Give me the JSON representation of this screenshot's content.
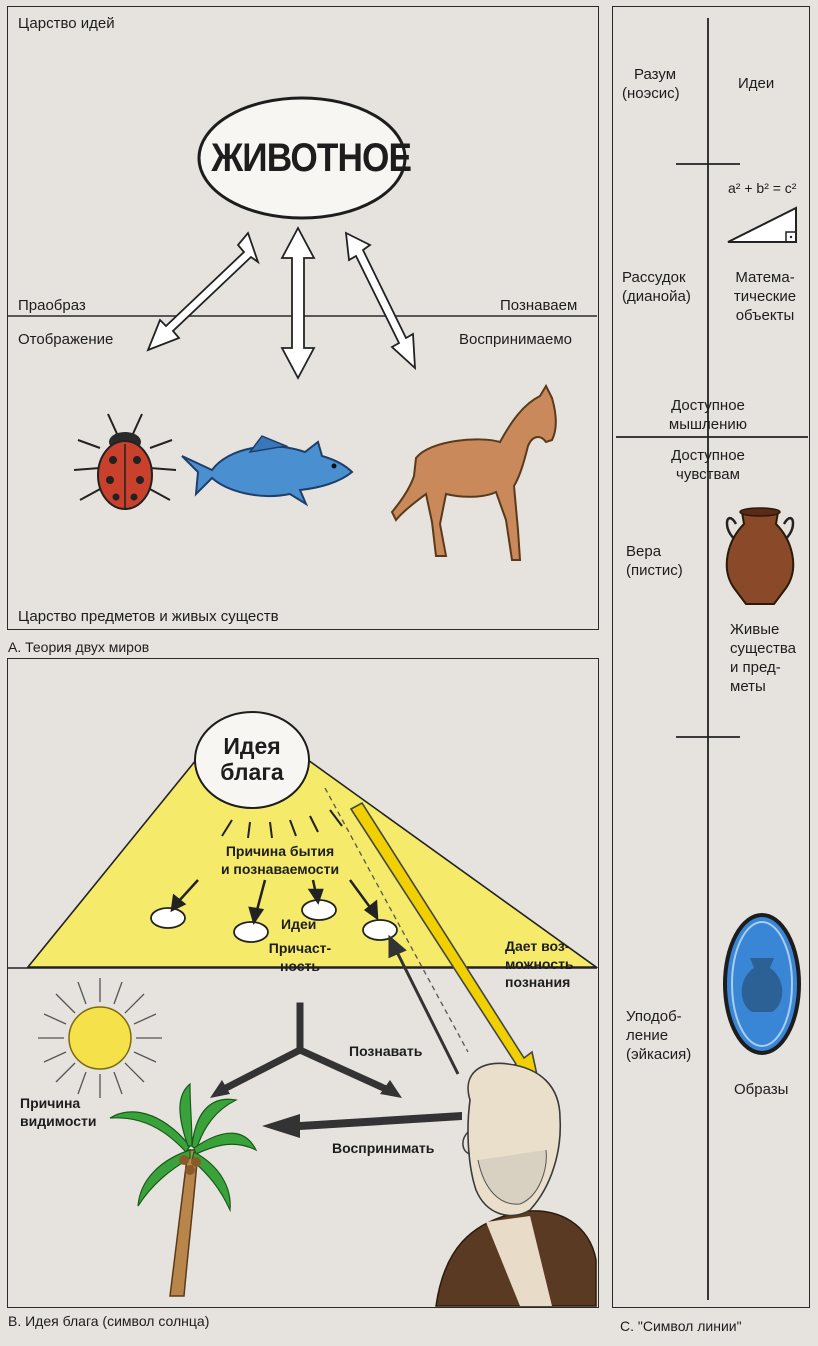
{
  "panel_a": {
    "realm_ideas": "Царство идей",
    "animal": "ЖИВОТНОЕ",
    "prototype": "Праобраз",
    "reflection": "Отображение",
    "cognize": "Познаваем",
    "perceived": "Воспринимаемо",
    "realm_objects": "Царство предметов и живых существ",
    "caption": "A.  Теория двух миров"
  },
  "panel_b": {
    "idea_good_1": "Идея",
    "idea_good_2": "блага",
    "cause_being_1": "Причина бытия",
    "cause_being_2": "и познаваемости",
    "ideas": "Идеи",
    "participation_1": "Причаст-",
    "participation_2": "ность",
    "gives_1": "Дает воз-",
    "gives_2": "можность",
    "gives_3": "познания",
    "to_cognize": "Познавать",
    "cause_visibility_1": "Причина",
    "cause_visibility_2": "видимости",
    "to_perceive": "Воспринимать",
    "caption": "B.  Идея блага (символ солнца)"
  },
  "panel_c": {
    "reason_1": "Разум",
    "reason_2": "(ноэсис)",
    "ideas": "Идеи",
    "formula": "a² + b² = c²",
    "understanding_1": "Рассудок",
    "understanding_2": "(дианойа)",
    "math_1": "Матема-",
    "math_2": "тические",
    "math_3": "объекты",
    "thinkable_1": "Доступное",
    "thinkable_2": "мышлению",
    "sensible_1": "Доступное",
    "sensible_2": "чувствам",
    "faith_1": "Вера",
    "faith_2": "(пистис)",
    "living_1": "Живые",
    "living_2": "существа",
    "living_3": "и пред-",
    "living_4": "меты",
    "likeness_1": "Уподоб-",
    "likeness_2": "ление",
    "likeness_3": "(эйкасия)",
    "images": "Образы",
    "caption": "C. \"Символ линии\""
  },
  "colors": {
    "beam": "#f5ea6a",
    "fish": "#4a8fd0",
    "horse": "#c9895a",
    "ladybug": "#c9402c",
    "vase": "#8a4a2a",
    "mirror": "#3a86d6"
  }
}
